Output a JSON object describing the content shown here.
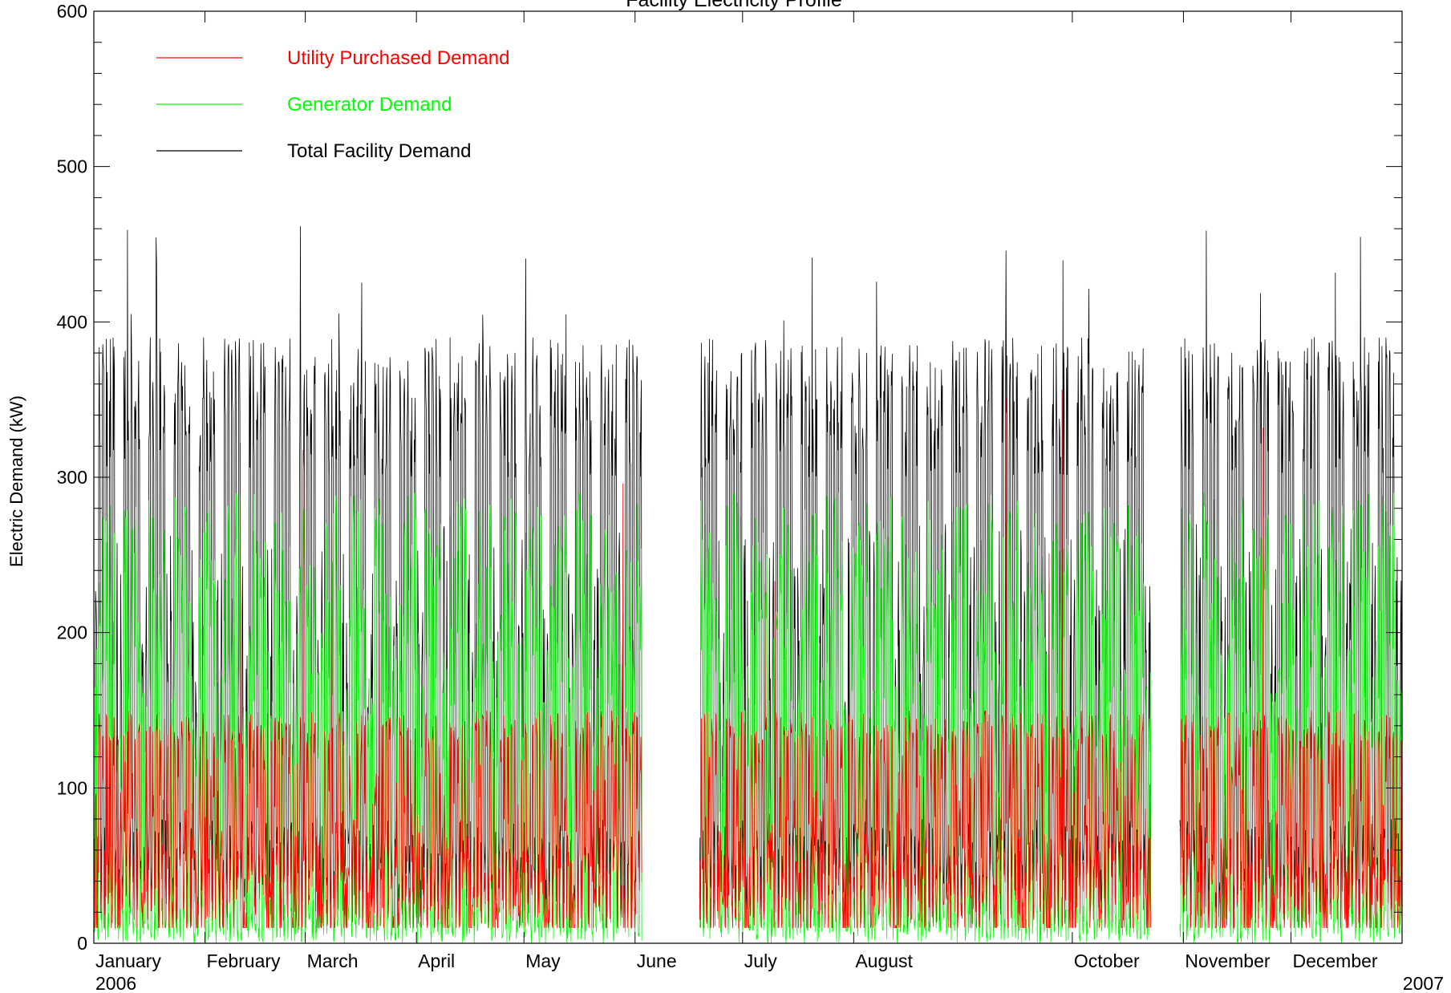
{
  "chart_data": {
    "type": "line",
    "title": "Facility Electricity Profile",
    "xlabel": "",
    "ylabel": "Electric Demand (kW)",
    "ylim": [
      0,
      600
    ],
    "yticks": [
      0,
      100,
      200,
      300,
      400,
      500,
      600
    ],
    "xlim": [
      "2006-01-01",
      "2007-01-01"
    ],
    "x_start_label": "2006",
    "x_end_label": "2007",
    "month_labels": [
      {
        "label": "January",
        "date": "2006-01-01"
      },
      {
        "label": "February",
        "date": "2006-02-01"
      },
      {
        "label": "March",
        "date": "2006-03-01"
      },
      {
        "label": "April",
        "date": "2006-04-01"
      },
      {
        "label": "May",
        "date": "2006-05-01"
      },
      {
        "label": "June",
        "date": "2006-06-01"
      },
      {
        "label": "July",
        "date": "2006-07-01"
      },
      {
        "label": "August",
        "date": "2006-08-01"
      },
      {
        "label": "October",
        "date": "2006-10-01"
      },
      {
        "label": "November",
        "date": "2006-11-01"
      },
      {
        "label": "December",
        "date": "2006-12-01"
      }
    ],
    "data_gaps": [
      {
        "from": "2006-06-03",
        "to": "2006-06-19"
      },
      {
        "from": "2006-10-23",
        "to": "2006-10-31"
      }
    ],
    "legend_position": "top-left",
    "grid": false,
    "series": [
      {
        "name": "Utility Purchased Demand",
        "color": "#ff0000",
        "typical_min": 10,
        "typical_max": 130,
        "peak_max": 360
      },
      {
        "name": "Generator Demand",
        "color": "#00ff00",
        "typical_min": 0,
        "typical_max": 290,
        "peak_max": 300
      },
      {
        "name": "Total Facility Demand",
        "color": "#000000",
        "typical_min": 20,
        "typical_max": 390,
        "peak_max": 462
      }
    ]
  }
}
